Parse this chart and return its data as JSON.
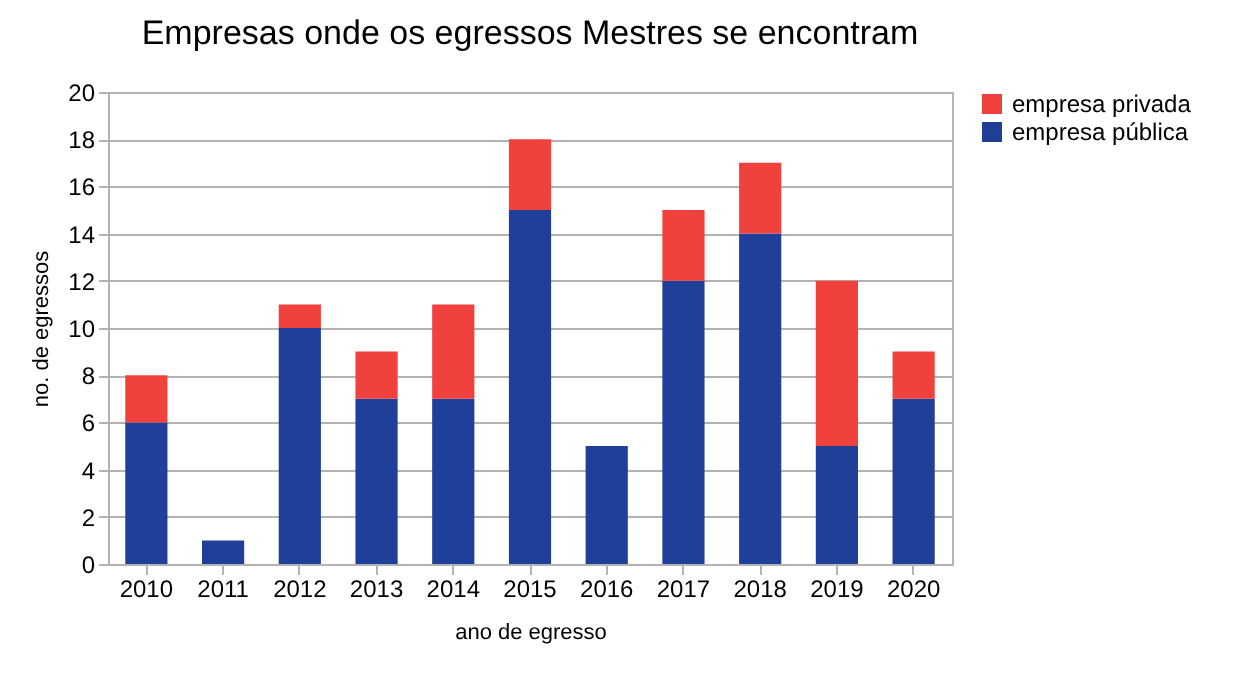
{
  "chart_data": {
    "type": "bar",
    "title": "Empresas onde os egressos Mestres se encontram",
    "xlabel": "ano de egresso",
    "ylabel": "no. de egressos",
    "categories": [
      "2010",
      "2011",
      "2012",
      "2013",
      "2014",
      "2015",
      "2016",
      "2017",
      "2018",
      "2019",
      "2020"
    ],
    "series": [
      {
        "name": "empresa pública",
        "color": "#203f98",
        "values": [
          6,
          1,
          10,
          7,
          7,
          15,
          5,
          12,
          14,
          5,
          7
        ]
      },
      {
        "name": "empresa privada",
        "color": "#f0413c",
        "values": [
          2,
          0,
          1,
          2,
          4,
          3,
          0,
          3,
          3,
          7,
          2
        ]
      }
    ],
    "stacked": true,
    "ylim": [
      0,
      20
    ],
    "yticks": [
      0,
      2,
      4,
      6,
      8,
      10,
      12,
      14,
      16,
      18,
      20
    ],
    "grid": "y",
    "legend": "right"
  }
}
